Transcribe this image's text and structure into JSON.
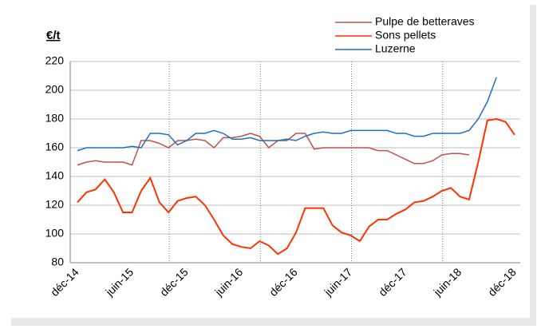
{
  "chart_data": {
    "type": "line",
    "title": "€/t",
    "categories": [
      "déc-14",
      null,
      null,
      null,
      null,
      null,
      "juin-15",
      null,
      null,
      null,
      null,
      null,
      "déc-15",
      null,
      null,
      null,
      null,
      null,
      "juin-16",
      null,
      null,
      null,
      null,
      null,
      "déc-16",
      null,
      null,
      null,
      null,
      null,
      "juin-17",
      null,
      null,
      null,
      null,
      null,
      "déc-17",
      null,
      null,
      null,
      null,
      null,
      "juin-18",
      null,
      null,
      null,
      null,
      null,
      "déc-18"
    ],
    "series": [
      {
        "name": "Pulpe de betteraves",
        "color": "#c0504d",
        "values": [
          148,
          150,
          151,
          150,
          150,
          150,
          148,
          165,
          165,
          163,
          160,
          165,
          165,
          166,
          165,
          160,
          167,
          167,
          168,
          170,
          168,
          160,
          165,
          165,
          170,
          170,
          159,
          160,
          160,
          160,
          160,
          160,
          160,
          158,
          158,
          155,
          152,
          149,
          149,
          151,
          155,
          156,
          156,
          155,
          null,
          null,
          null,
          null,
          null
        ]
      },
      {
        "name": "Sons pellets",
        "color": "#ff3300",
        "values": [
          122,
          129,
          131,
          138,
          129,
          115,
          115,
          130,
          139,
          122,
          115,
          123,
          125,
          126,
          120,
          110,
          99,
          93,
          91,
          90,
          95,
          92,
          86,
          90,
          101,
          118,
          118,
          118,
          106,
          101,
          99,
          95,
          105,
          110,
          110,
          114,
          117,
          122,
          123,
          126,
          130,
          132,
          126,
          124,
          150,
          179,
          180,
          178,
          169
        ]
      },
      {
        "name": "Luzerne",
        "color": "#1f6fc0",
        "values": [
          158,
          160,
          160,
          160,
          160,
          160,
          161,
          160,
          170,
          170,
          169,
          162,
          165,
          170,
          170,
          172,
          170,
          166,
          166,
          167,
          165,
          165,
          165,
          166,
          165,
          168,
          170,
          171,
          170,
          170,
          172,
          172,
          172,
          172,
          172,
          170,
          170,
          168,
          168,
          170,
          170,
          170,
          170,
          172,
          180,
          192,
          209,
          null,
          null
        ]
      }
    ],
    "ylim": [
      80,
      220
    ],
    "yticks": [
      80,
      100,
      120,
      140,
      160,
      180,
      200,
      220
    ],
    "grid": true
  }
}
